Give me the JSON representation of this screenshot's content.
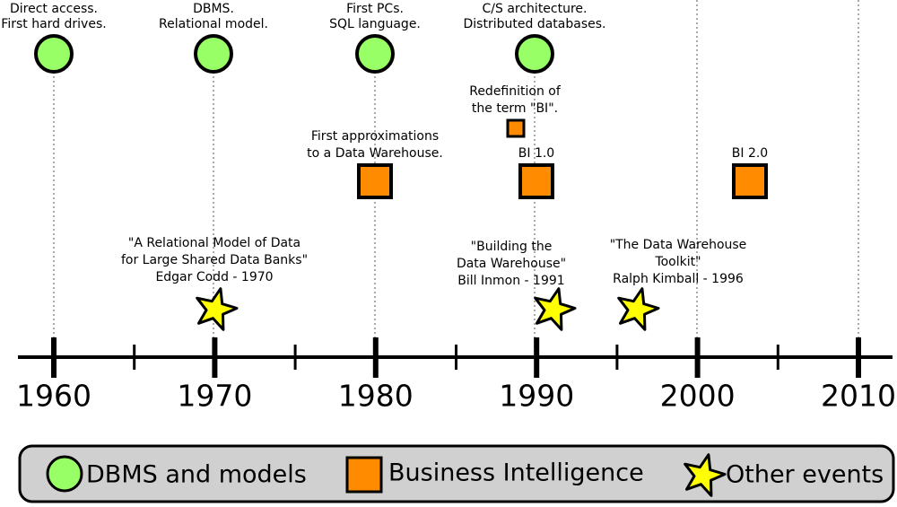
{
  "dbms_events": [
    {
      "lines": [
        "Direct access.",
        "First hard drives."
      ]
    },
    {
      "lines": [
        "DBMS.",
        "Relational model."
      ]
    },
    {
      "lines": [
        "First PCs.",
        "SQL language."
      ]
    },
    {
      "lines": [
        "C/S architecture.",
        "Distributed databases."
      ]
    }
  ],
  "bi_events": [
    {
      "lines": [
        "Redefinition of",
        "the term \"BI\"."
      ]
    },
    {
      "lines": [
        "First approximations",
        "to a Data Warehouse."
      ]
    },
    {
      "lines": [
        "BI 1.0"
      ]
    },
    {
      "lines": [
        "BI 2.0"
      ]
    }
  ],
  "other_events": [
    {
      "lines": [
        "\"A Relational Model of Data",
        "for Large Shared Data Banks\"",
        "Edgar Codd - 1970"
      ]
    },
    {
      "lines": [
        "\"Building the",
        "Data Warehouse\"",
        "Bill Inmon - 1991"
      ]
    },
    {
      "lines": [
        "\"The Data Warehouse",
        "Toolkit\"",
        "Ralph Kimball - 1996"
      ]
    }
  ],
  "axis": {
    "ticks": [
      1960,
      1970,
      1980,
      1990,
      2000,
      2010
    ]
  },
  "legend": {
    "items": [
      "DBMS and models",
      "Business Intelligence",
      "Other events"
    ]
  }
}
